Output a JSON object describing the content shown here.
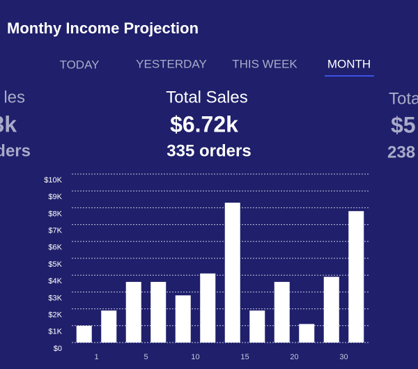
{
  "header": {
    "title": "Monthy Income Projection"
  },
  "tabs": [
    "TODAY",
    "YESTERDAY",
    "THIS WEEK",
    "MONTH"
  ],
  "cards": [
    {
      "title": "les",
      "amount": "3k",
      "orders": "ders"
    },
    {
      "title": "Total Sales",
      "amount": "$6.72k",
      "orders": "335 orders"
    },
    {
      "title": "Tota",
      "amount": "$5",
      "orders": "238"
    }
  ],
  "chart_data": {
    "type": "bar",
    "categories": [
      "1",
      null,
      "5",
      null,
      "10",
      null,
      "15",
      null,
      "20",
      null,
      "30",
      null
    ],
    "values": [
      1000,
      1900,
      3600,
      3600,
      2800,
      4100,
      8300,
      1900,
      3600,
      1100,
      3900,
      7800
    ],
    "color": "#ffffff",
    "ylim": [
      0,
      10000
    ],
    "yticks": [
      {
        "value": 0,
        "label": "$0"
      },
      {
        "value": 1000,
        "label": "$1K"
      },
      {
        "value": 2000,
        "label": "$2K"
      },
      {
        "value": 3000,
        "label": "$3K"
      },
      {
        "value": 4000,
        "label": "$4K"
      },
      {
        "value": 5000,
        "label": "$5K"
      },
      {
        "value": 6000,
        "label": "$6K"
      },
      {
        "value": 7000,
        "label": "$7K"
      },
      {
        "value": 8000,
        "label": "$8K"
      },
      {
        "value": 9000,
        "label": "$9K"
      },
      {
        "value": 10000,
        "label": "$10K"
      }
    ],
    "grid": true
  }
}
